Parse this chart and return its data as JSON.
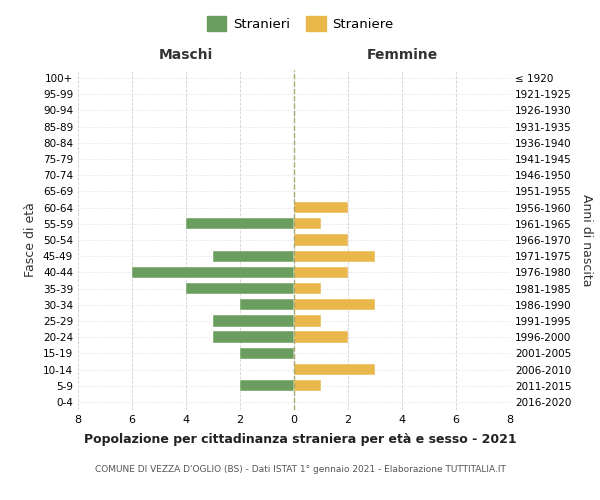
{
  "age_groups": [
    "100+",
    "95-99",
    "90-94",
    "85-89",
    "80-84",
    "75-79",
    "70-74",
    "65-69",
    "60-64",
    "55-59",
    "50-54",
    "45-49",
    "40-44",
    "35-39",
    "30-34",
    "25-29",
    "20-24",
    "15-19",
    "10-14",
    "5-9",
    "0-4"
  ],
  "birth_years": [
    "≤ 1920",
    "1921-1925",
    "1926-1930",
    "1931-1935",
    "1936-1940",
    "1941-1945",
    "1946-1950",
    "1951-1955",
    "1956-1960",
    "1961-1965",
    "1966-1970",
    "1971-1975",
    "1976-1980",
    "1981-1985",
    "1986-1990",
    "1991-1995",
    "1996-2000",
    "2001-2005",
    "2006-2010",
    "2011-2015",
    "2016-2020"
  ],
  "maschi": [
    0,
    0,
    0,
    0,
    0,
    0,
    0,
    0,
    0,
    4,
    0,
    3,
    6,
    4,
    2,
    3,
    3,
    2,
    0,
    2,
    0
  ],
  "femmine": [
    0,
    0,
    0,
    0,
    0,
    0,
    0,
    0,
    2,
    1,
    2,
    3,
    2,
    1,
    3,
    1,
    2,
    0,
    3,
    1,
    0
  ],
  "color_maschi": "#6b9e5e",
  "color_femmine": "#e8b84b",
  "title": "Popolazione per cittadinanza straniera per età e sesso - 2021",
  "subtitle": "COMUNE DI VEZZA D'OGLIO (BS) - Dati ISTAT 1° gennaio 2021 - Elaborazione TUTTITALIA.IT",
  "ylabel_left": "Fasce di età",
  "ylabel_right": "Anni di nascita",
  "label_maschi": "Maschi",
  "label_femmine": "Femmine",
  "legend_stranieri": "Stranieri",
  "legend_straniere": "Straniere",
  "xlim": 8,
  "background_color": "#ffffff",
  "grid_color": "#d0d0d0"
}
